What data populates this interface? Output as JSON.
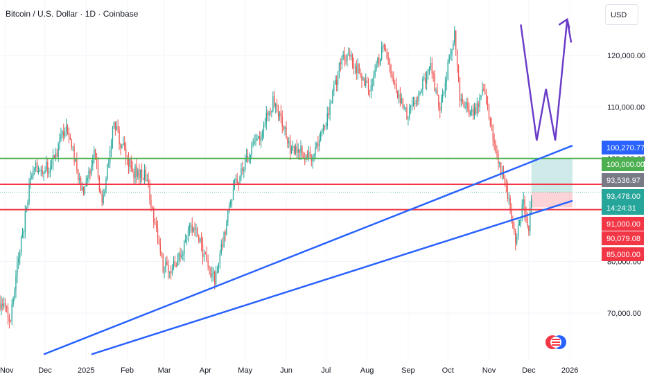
{
  "header": {
    "title": "Bitcoin / U.S. Dollar · 1D · Coinbase",
    "currency_button": "USD"
  },
  "colors": {
    "up": "#26a69a",
    "down": "#ef5350",
    "green_line": "#4caf50",
    "red_line": "#f23645",
    "trend_line": "#2962ff",
    "projection": "#6a3cc8"
  },
  "chart_data": {
    "type": "candlestick",
    "symbol": "BTCUSD",
    "timeframe": "1D",
    "exchange": "Coinbase",
    "y_axis": {
      "range": [
        64000,
        130500
      ],
      "ticks": [
        70000,
        80000,
        90000,
        100000,
        110000,
        120000
      ],
      "tick_labels": [
        "70,000.00",
        "80,000.00",
        "90,000.00",
        "100,000.00",
        "110,000.00",
        "120,000.00"
      ]
    },
    "x_axis": {
      "labels": [
        "Nov",
        "Dec",
        "2025",
        "Feb",
        "Mar",
        "Apr",
        "May",
        "Jun",
        "Jul",
        "Aug",
        "Sep",
        "Oct",
        "Nov",
        "Dec",
        "2026"
      ]
    },
    "price_path": [
      [
        "2024-10-28",
        72000
      ],
      [
        "2024-11-05",
        68500
      ],
      [
        "2024-11-10",
        79000
      ],
      [
        "2024-11-22",
        98500
      ],
      [
        "2024-12-05",
        98000
      ],
      [
        "2024-12-17",
        106500
      ],
      [
        "2024-12-30",
        92500
      ],
      [
        "2025-01-07",
        101500
      ],
      [
        "2025-01-13",
        91500
      ],
      [
        "2025-01-22",
        106500
      ],
      [
        "2025-02-05",
        97500
      ],
      [
        "2025-02-15",
        97000
      ],
      [
        "2025-02-28",
        79000
      ],
      [
        "2025-03-10",
        79000
      ],
      [
        "2025-03-22",
        87000
      ],
      [
        "2025-04-08",
        76500
      ],
      [
        "2025-04-22",
        94000
      ],
      [
        "2025-05-10",
        103500
      ],
      [
        "2025-05-22",
        111000
      ],
      [
        "2025-06-05",
        101500
      ],
      [
        "2025-06-22",
        100500
      ],
      [
        "2025-07-03",
        109000
      ],
      [
        "2025-07-14",
        120500
      ],
      [
        "2025-07-25",
        117500
      ],
      [
        "2025-08-03",
        113500
      ],
      [
        "2025-08-13",
        122000
      ],
      [
        "2025-08-22",
        113500
      ],
      [
        "2025-09-01",
        108500
      ],
      [
        "2025-09-18",
        117500
      ],
      [
        "2025-09-25",
        109500
      ],
      [
        "2025-10-06",
        124500
      ],
      [
        "2025-10-10",
        112000
      ],
      [
        "2025-10-20",
        108500
      ],
      [
        "2025-10-28",
        113000
      ],
      [
        "2025-11-06",
        101500
      ],
      [
        "2025-11-14",
        95000
      ],
      [
        "2025-11-21",
        84500
      ],
      [
        "2025-11-27",
        91500
      ],
      [
        "2025-12-01",
        86500
      ],
      [
        "2025-12-03",
        93478
      ]
    ],
    "horizontal_lines": [
      {
        "price": 100000,
        "color": "green"
      },
      {
        "price": 95000,
        "color": "red"
      },
      {
        "price": 90079.08,
        "color": "red"
      }
    ],
    "trend_lines": [
      {
        "from": [
          "2024-11-30",
          62000
        ],
        "to": [
          "2026-01-03",
          102500
        ]
      },
      {
        "from": [
          "2025-01-05",
          62000
        ],
        "to": [
          "2026-01-03",
          91800
        ]
      }
    ],
    "projection_path": [
      [
        "2025-11-25",
        126000
      ],
      [
        "2025-12-07",
        103500
      ],
      [
        "2025-12-14",
        113500
      ],
      [
        "2025-12-21",
        103500
      ],
      [
        "2025-12-30",
        127000
      ],
      [
        "2026-01-02",
        122500
      ]
    ],
    "position_box": {
      "start": "2025-12-03",
      "end": "2026-01-03",
      "entry": 93478,
      "target": 100000,
      "stop": 90500
    },
    "price_labels": [
      {
        "text": "100,270.77",
        "price": 100270.77,
        "color": "#2962ff"
      },
      {
        "text": "100,000.00",
        "price": 100000,
        "color": "#4caf50"
      },
      {
        "text": "93,536.97",
        "price": 93536.97,
        "color": "#787b86"
      },
      {
        "text": "93,478.00",
        "price": 93478,
        "color": "#26a69a"
      },
      {
        "text": "14:24:31",
        "price": 92400,
        "color": "#26a69a"
      },
      {
        "text": "91,000.00",
        "price": 91000,
        "color": "#f23645"
      },
      {
        "text": "90,079.08",
        "price": 90079.08,
        "color": "#f23645"
      },
      {
        "text": "85,000.00",
        "price": 85000,
        "color": "#f23645"
      }
    ]
  }
}
